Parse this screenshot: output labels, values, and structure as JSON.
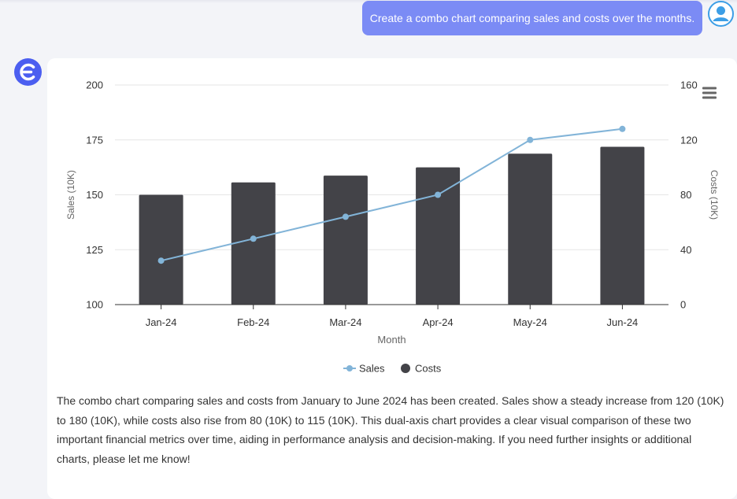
{
  "conversation": {
    "user_message": "Create a combo chart comparing sales and costs over the months.",
    "assistant_reply": "The combo chart comparing sales and costs from January to June 2024 has been created. Sales show a steady increase from 120 (10K) to 180 (10K), while costs also rise from 80 (10K) to 115 (10K). This dual-axis chart provides a clear visual comparison of these two important financial metrics over time, aiding in performance analysis and decision-making. If you need further insights or additional charts, please let me know!",
    "user_avatar_icon": "user-avatar-icon",
    "assistant_logo_icon": "assistant-logo-icon"
  },
  "chart_menu_icon": "hamburger-menu-icon",
  "colors": {
    "user_bubble": "#7b8bf5",
    "assistant_logo": "#4b5ef0",
    "sales_line": "#82b4d8",
    "costs_bar": "#434348"
  },
  "chart_data": {
    "type": "bar",
    "categories": [
      "Jan-24",
      "Feb-24",
      "Mar-24",
      "Apr-24",
      "May-24",
      "Jun-24"
    ],
    "xlabel": "Month",
    "series": [
      {
        "name": "Sales",
        "type": "line",
        "axis": "left",
        "values": [
          120,
          130,
          140,
          150,
          175,
          180
        ]
      },
      {
        "name": "Costs",
        "type": "bar",
        "axis": "right",
        "values": [
          80,
          89,
          94,
          100,
          110,
          115
        ]
      }
    ],
    "y_left": {
      "label": "Sales (10K)",
      "min": 100,
      "max": 200,
      "ticks": [
        100,
        125,
        150,
        175,
        200
      ]
    },
    "y_right": {
      "label": "Costs (10K)",
      "min": 0,
      "max": 160,
      "ticks": [
        0,
        40,
        80,
        120,
        160
      ]
    },
    "grid": true,
    "legend": "bottom-center"
  }
}
